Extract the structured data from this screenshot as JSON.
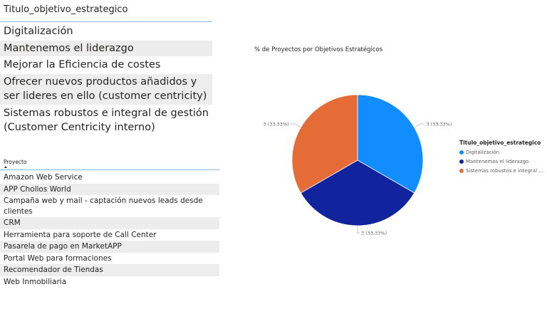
{
  "slicer_objetivos": {
    "title": "Titulo_objetivo_estrategico",
    "items": [
      "Digitalización",
      "Mantenemos el liderazgo",
      "Mejorar la Eficiencia de costes",
      "Ofrecer nuevos productos añadidos y ser lideres en ello  (customer centricity)",
      "Sistemas robustos e integral de gestión (Customer Centricity interno)"
    ]
  },
  "slicer_proyectos": {
    "title": "Proyecto",
    "sort_icon": "sort-ascending-icon",
    "items": [
      "Amazon Web Service",
      "APP Chollos World",
      "Campaña web y mail - captación nuevos leads desde clientes",
      "CRM",
      "Herramienta para soporte de Call Center",
      "Pasarela de pago en MarketAPP",
      "Portal Web para formaciones",
      "Recomendador de Tiendas",
      "Web Inmobiliaria"
    ]
  },
  "chart_data": {
    "type": "pie",
    "title": "% de Proyectos por Objetivos Estratégicos",
    "legend_title": "Titulo_objetivo_estrategico",
    "legend_position": "right",
    "categories": [
      "Digitalización",
      "Mantenemos el liderazgo",
      "Sistemas robustos e integral ..."
    ],
    "values": [
      3,
      3,
      3
    ],
    "data_labels": [
      "3 (33,33%)",
      "3 (33,33%)",
      "3 (33,33%)"
    ],
    "colors": [
      "#118dff",
      "#12239e",
      "#e66c37"
    ]
  }
}
